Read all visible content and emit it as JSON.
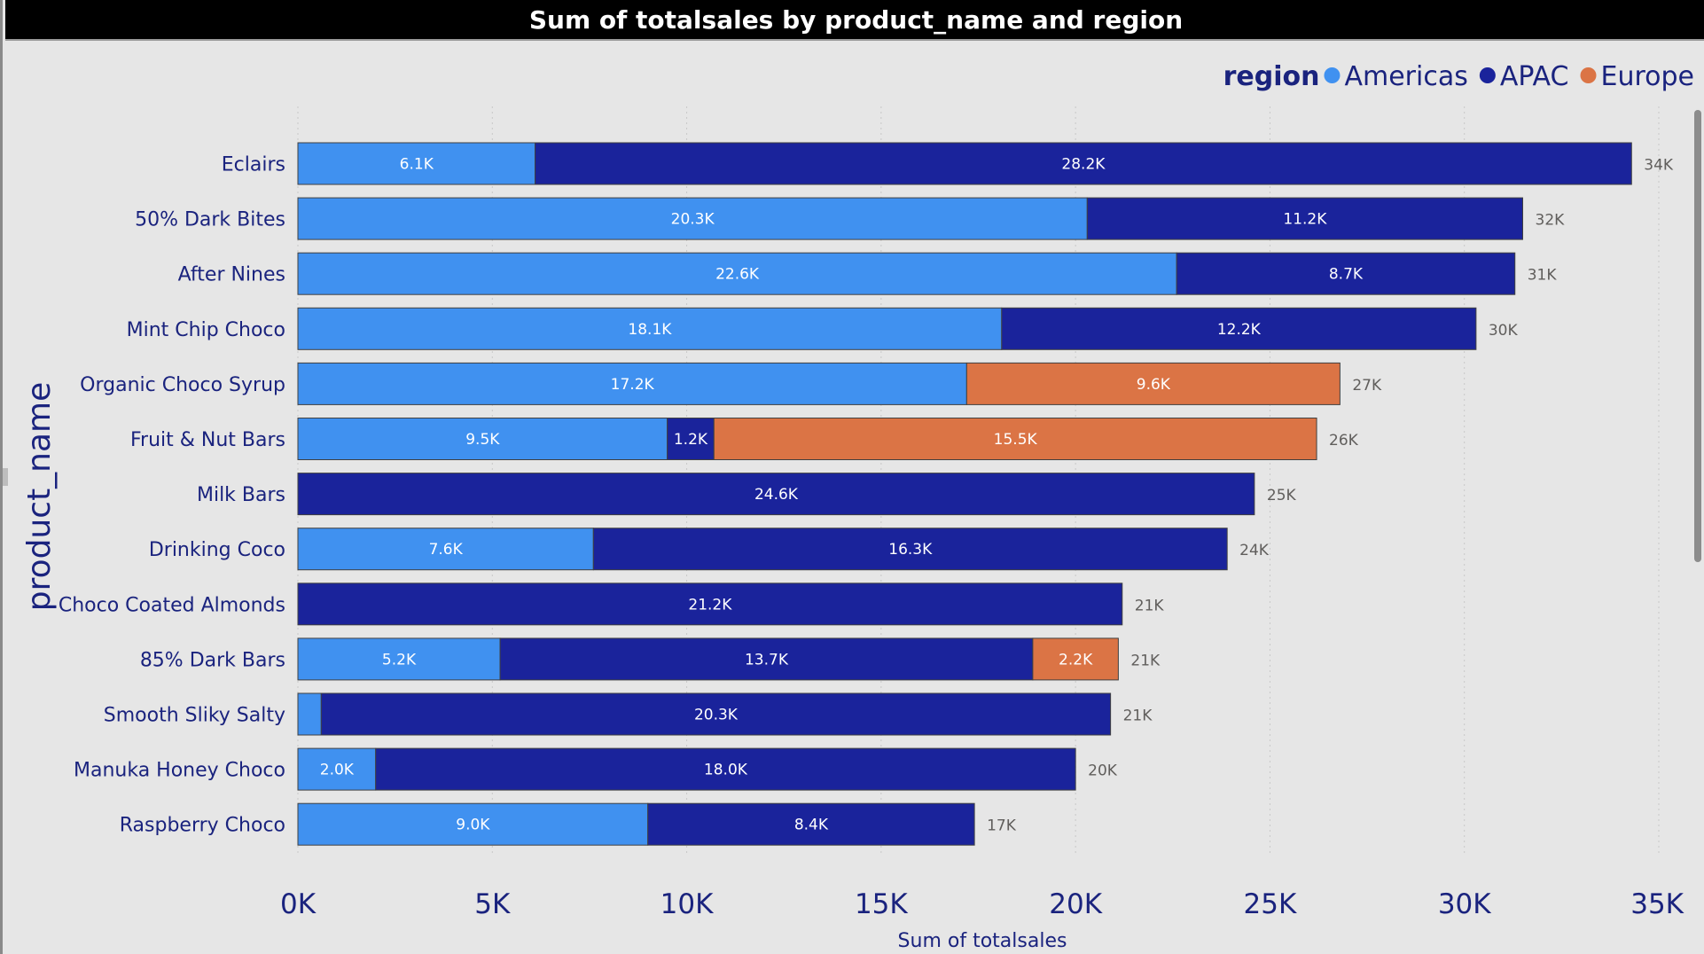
{
  "title": "Sum of totalsales by product_name and region",
  "colors": {
    "Americas": "#4091f0",
    "APAC": "#1a239b",
    "Europe": "#db7445",
    "text": "#1a237e",
    "total_label": "#605e5c"
  },
  "chart_data": {
    "type": "bar",
    "orientation": "horizontal",
    "stacked": true,
    "title": "Sum of totalsales by product_name and region",
    "xlabel": "Sum of totalsales",
    "ylabel": "product_name",
    "xlim": [
      0,
      35000
    ],
    "x_ticks": [
      {
        "value": 0,
        "label": "0K"
      },
      {
        "value": 5000,
        "label": "5K"
      },
      {
        "value": 10000,
        "label": "10K"
      },
      {
        "value": 15000,
        "label": "15K"
      },
      {
        "value": 20000,
        "label": "20K"
      },
      {
        "value": 25000,
        "label": "25K"
      },
      {
        "value": 30000,
        "label": "30K"
      },
      {
        "value": 35000,
        "label": "35K"
      }
    ],
    "grid": true,
    "legend": {
      "title": "region",
      "placement": "top-right",
      "entries": [
        "Americas",
        "APAC",
        "Europe"
      ]
    },
    "categories": [
      "Eclairs",
      "50% Dark Bites",
      "After Nines",
      "Mint Chip Choco",
      "Organic Choco Syrup",
      "Fruit & Nut Bars",
      "Milk Bars",
      "Drinking Coco",
      "Choco Coated Almonds",
      "85% Dark Bars",
      "Smooth Sliky Salty",
      "Manuka Honey Choco",
      "Raspberry Choco"
    ],
    "series": [
      {
        "name": "Americas",
        "values": [
          6100,
          20300,
          22600,
          18100,
          17200,
          9500,
          0,
          7600,
          0,
          5200,
          600,
          2000,
          9000
        ],
        "labels": [
          "6.1K",
          "20.3K",
          "22.6K",
          "18.1K",
          "17.2K",
          "9.5K",
          "",
          "7.6K",
          "",
          "5.2K",
          "",
          "2.0K",
          "9.0K"
        ]
      },
      {
        "name": "APAC",
        "values": [
          28200,
          11200,
          8700,
          12200,
          0,
          1200,
          24600,
          16300,
          21200,
          13700,
          20300,
          18000,
          8400
        ],
        "labels": [
          "28.2K",
          "11.2K",
          "8.7K",
          "12.2K",
          "",
          "1.2K",
          "24.6K",
          "16.3K",
          "21.2K",
          "13.7K",
          "20.3K",
          "18.0K",
          "8.4K"
        ]
      },
      {
        "name": "Europe",
        "values": [
          0,
          0,
          0,
          0,
          9600,
          15500,
          0,
          0,
          0,
          2200,
          0,
          0,
          0
        ],
        "labels": [
          "",
          "",
          "",
          "",
          "9.6K",
          "15.5K",
          "",
          "",
          "",
          "2.2K",
          "",
          "",
          ""
        ]
      }
    ],
    "totals": [
      "34K",
      "32K",
      "31K",
      "30K",
      "27K",
      "26K",
      "25K",
      "24K",
      "21K",
      "21K",
      "21K",
      "20K",
      "17K"
    ]
  }
}
